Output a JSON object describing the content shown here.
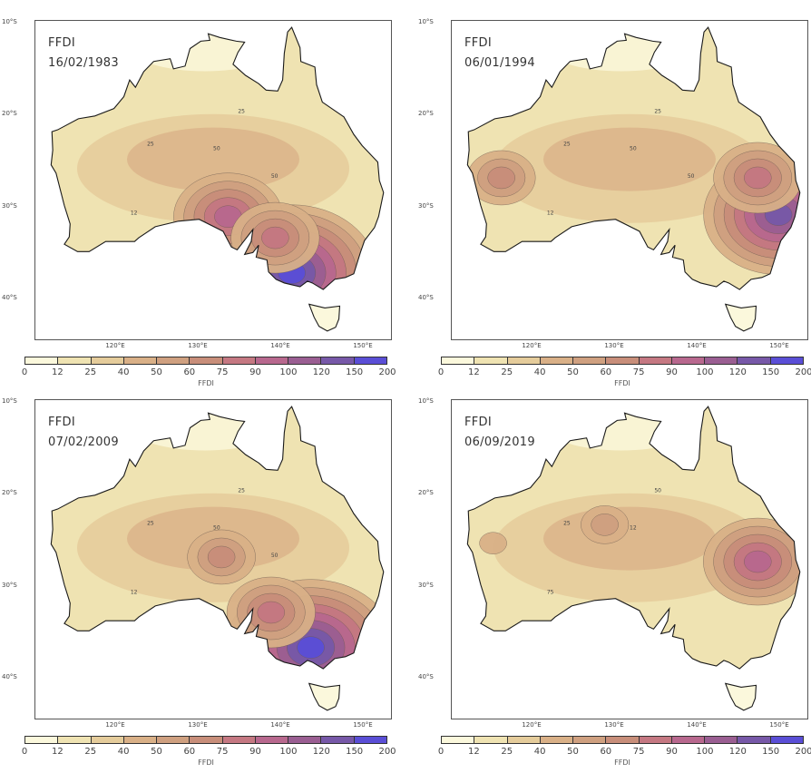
{
  "colorbar": {
    "label": "FFDI",
    "ticks": [
      "0",
      "12",
      "25",
      "40",
      "50",
      "60",
      "75",
      "90",
      "100",
      "120",
      "150",
      "200"
    ],
    "colors": [
      "#fbf8dc",
      "#efe3b2",
      "#e5cc9b",
      "#d9b087",
      "#cfa080",
      "#c88e7a",
      "#c57882",
      "#b8688e",
      "#9a5e92",
      "#7758a8",
      "#5a4ed6"
    ]
  },
  "axes": {
    "lat_ticks": [
      "10°S",
      "20°S",
      "30°S",
      "40°S"
    ],
    "lon_ticks": [
      "120°E",
      "130°E",
      "140°E",
      "150°E"
    ]
  },
  "panels": [
    {
      "variable": "FFDI",
      "date": "16/02/1983",
      "contour_labels": [
        "25",
        "50",
        "12",
        "25",
        "50"
      ],
      "hotspots": [
        {
          "lon": 142.5,
          "lat": -37.3,
          "level": 10
        },
        {
          "lon": 134.8,
          "lat": -31.2,
          "level": 7
        },
        {
          "lon": 140.5,
          "lat": -33.5,
          "level": 6
        }
      ]
    },
    {
      "variable": "FFDI",
      "date": "06/01/1994",
      "contour_labels": [
        "25",
        "50",
        "12",
        "25",
        "50"
      ],
      "hotspots": [
        {
          "lon": 151.0,
          "lat": -31.0,
          "level": 9
        },
        {
          "lon": 148.5,
          "lat": -27.0,
          "level": 6
        },
        {
          "lon": 117.5,
          "lat": -27.0,
          "level": 5
        }
      ]
    },
    {
      "variable": "FFDI",
      "date": "07/02/2009",
      "contour_labels": [
        "25",
        "50",
        "12",
        "25",
        "50"
      ],
      "hotspots": [
        {
          "lon": 144.8,
          "lat": -36.8,
          "level": 10
        },
        {
          "lon": 140.0,
          "lat": -33.0,
          "level": 6
        },
        {
          "lon": 134.0,
          "lat": -27.0,
          "level": 5
        }
      ]
    },
    {
      "variable": "FFDI",
      "date": "06/09/2019",
      "contour_labels": [
        "25",
        "12",
        "75",
        "50"
      ],
      "hotspots": [
        {
          "lon": 148.5,
          "lat": -27.5,
          "level": 7
        },
        {
          "lon": 130.0,
          "lat": -23.5,
          "level": 4
        },
        {
          "lon": 116.5,
          "lat": -25.5,
          "level": 3
        }
      ]
    }
  ]
}
